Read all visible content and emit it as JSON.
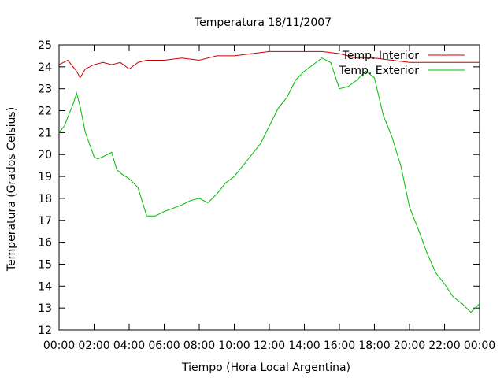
{
  "chart_data": {
    "type": "line",
    "title": "Temperatura 18/11/2007",
    "xlabel": "Tiempo (Hora Local Argentina)",
    "ylabel": "Temperatura (Grados Celsius)",
    "xlim": [
      0,
      24
    ],
    "ylim": [
      12,
      25
    ],
    "x_ticks": [
      0,
      2,
      4,
      6,
      8,
      10,
      12,
      14,
      16,
      18,
      20,
      22,
      24
    ],
    "x_tick_labels": [
      "00:00",
      "02:00",
      "04:00",
      "06:00",
      "08:00",
      "10:00",
      "12:00",
      "14:00",
      "16:00",
      "18:00",
      "20:00",
      "22:00",
      "00:00"
    ],
    "y_ticks": [
      12,
      13,
      14,
      15,
      16,
      17,
      18,
      19,
      20,
      21,
      22,
      23,
      24,
      25
    ],
    "grid": false,
    "legend_position": "top-right",
    "series": [
      {
        "name": "Temp. Interior",
        "color": "#cc0000",
        "x": [
          0,
          0.5,
          1,
          1.2,
          1.5,
          2,
          2.5,
          3,
          3.5,
          4,
          4.5,
          5,
          6,
          7,
          8,
          9,
          10,
          11,
          12,
          13,
          14,
          15,
          16,
          17,
          18,
          19,
          20,
          21,
          22,
          23,
          24
        ],
        "y": [
          24.1,
          24.3,
          23.8,
          23.5,
          23.9,
          24.1,
          24.2,
          24.1,
          24.2,
          23.9,
          24.2,
          24.3,
          24.3,
          24.4,
          24.3,
          24.5,
          24.5,
          24.6,
          24.7,
          24.7,
          24.7,
          24.7,
          24.6,
          24.4,
          24.4,
          24.3,
          24.2,
          24.2,
          24.2,
          24.2,
          24.2
        ]
      },
      {
        "name": "Temp. Exterior",
        "color": "#00bb00",
        "x": [
          0,
          0.3,
          0.6,
          0.8,
          1.0,
          1.2,
          1.5,
          2.0,
          2.2,
          2.5,
          3.0,
          3.3,
          3.6,
          4.0,
          4.5,
          5.0,
          5.5,
          6.0,
          7.0,
          7.5,
          8.0,
          8.5,
          9.0,
          9.5,
          10.0,
          10.5,
          11.0,
          11.5,
          12.0,
          12.5,
          13.0,
          13.5,
          14.0,
          14.5,
          15.0,
          15.5,
          16.0,
          16.5,
          17.0,
          17.5,
          18.0,
          18.5,
          19.0,
          19.5,
          20.0,
          20.5,
          21.0,
          21.5,
          22.0,
          22.5,
          23.0,
          23.5,
          24.0
        ],
        "y": [
          21.0,
          21.3,
          21.9,
          22.3,
          22.8,
          22.2,
          21.0,
          19.9,
          19.8,
          19.9,
          20.1,
          19.3,
          19.1,
          18.9,
          18.5,
          17.2,
          17.2,
          17.4,
          17.7,
          17.9,
          18.0,
          17.8,
          18.2,
          18.7,
          19.0,
          19.5,
          20.0,
          20.5,
          21.3,
          22.1,
          22.6,
          23.4,
          23.8,
          24.1,
          24.4,
          24.2,
          23.0,
          23.1,
          23.4,
          23.8,
          23.5,
          21.8,
          20.8,
          19.5,
          17.6,
          16.6,
          15.5,
          14.6,
          14.1,
          13.5,
          13.2,
          12.8,
          13.2
        ]
      }
    ]
  }
}
